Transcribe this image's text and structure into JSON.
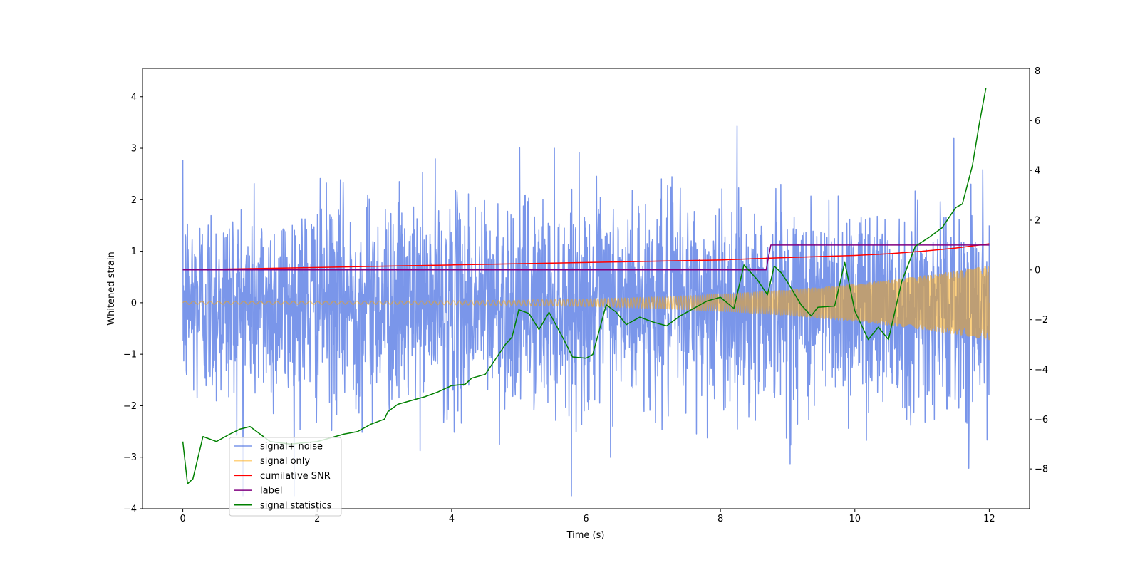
{
  "chart_data": {
    "type": "line",
    "xlabel": "Time (s)",
    "ylabel": "Whitened strain",
    "xlim": [
      -0.6,
      12.6
    ],
    "ylim": [
      -4,
      4.55
    ],
    "y2lim": [
      -9.6,
      8.1
    ],
    "xticks": [
      0,
      2,
      4,
      6,
      8,
      10,
      12
    ],
    "yticks": [
      -4,
      -3,
      -2,
      -1,
      0,
      1,
      2,
      3,
      4
    ],
    "y2ticks": [
      -8,
      -6,
      -4,
      -2,
      0,
      2,
      4,
      6,
      8
    ],
    "grid": false,
    "legend_position": "lower-left",
    "series": [
      {
        "name": "signal+ noise",
        "axis": "left",
        "color": "#4169e1",
        "opacity": 0.7,
        "style": "noise",
        "noise_sigma": 1.0,
        "x_range": [
          0,
          12
        ]
      },
      {
        "name": "signal only",
        "axis": "left",
        "color": "#ffa500",
        "opacity": 0.5,
        "style": "chirp",
        "amplitude_start": 0.03,
        "amplitude_end": 0.72,
        "x_range": [
          0,
          12
        ]
      },
      {
        "name": "cumilative SNR",
        "axis": "right",
        "color": "#ff0000",
        "x": [
          0,
          2,
          4,
          6,
          8,
          9,
          10,
          10.5,
          11,
          11.5,
          12
        ],
        "y": [
          0.0,
          0.1,
          0.2,
          0.3,
          0.4,
          0.5,
          0.58,
          0.65,
          0.75,
          0.88,
          1.05
        ]
      },
      {
        "name": "label",
        "axis": "right",
        "color": "#800080",
        "x": [
          0,
          8.68,
          8.75,
          12
        ],
        "y": [
          0,
          0,
          1.0,
          1.0
        ]
      },
      {
        "name": "signal statistics",
        "axis": "right",
        "color": "#008000",
        "x": [
          0,
          0.07,
          0.15,
          0.3,
          0.5,
          0.7,
          0.85,
          1.0,
          1.1,
          1.3,
          1.6,
          2.0,
          2.4,
          2.6,
          2.8,
          3.0,
          3.05,
          3.2,
          3.4,
          3.6,
          3.8,
          4.0,
          4.2,
          4.3,
          4.5,
          4.65,
          4.8,
          4.9,
          5.0,
          5.15,
          5.3,
          5.45,
          5.65,
          5.8,
          6.0,
          6.1,
          6.3,
          6.45,
          6.6,
          6.8,
          7.0,
          7.2,
          7.4,
          7.6,
          7.8,
          8.0,
          8.2,
          8.35,
          8.55,
          8.7,
          8.8,
          8.9,
          9.0,
          9.2,
          9.35,
          9.45,
          9.7,
          9.85,
          10.0,
          10.2,
          10.35,
          10.5,
          10.7,
          10.9,
          11.1,
          11.3,
          11.5,
          11.6,
          11.75,
          11.85,
          11.95
        ],
        "y": [
          -6.9,
          -8.6,
          -8.4,
          -6.7,
          -6.9,
          -6.6,
          -6.4,
          -6.3,
          -6.5,
          -6.9,
          -7.0,
          -6.9,
          -6.6,
          -6.5,
          -6.2,
          -6.0,
          -5.7,
          -5.4,
          -5.25,
          -5.1,
          -4.9,
          -4.65,
          -4.6,
          -4.35,
          -4.2,
          -3.6,
          -3.0,
          -2.7,
          -1.6,
          -1.75,
          -2.4,
          -1.7,
          -2.7,
          -3.5,
          -3.55,
          -3.4,
          -1.4,
          -1.7,
          -2.2,
          -1.9,
          -2.1,
          -2.25,
          -1.85,
          -1.55,
          -1.25,
          -1.1,
          -1.55,
          0.2,
          -0.4,
          -1.0,
          0.15,
          -0.1,
          -0.5,
          -1.4,
          -1.85,
          -1.5,
          -1.45,
          0.3,
          -1.65,
          -2.8,
          -2.3,
          -2.8,
          -0.45,
          0.95,
          1.3,
          1.7,
          2.5,
          2.65,
          4.2,
          5.85,
          7.3
        ]
      }
    ]
  }
}
